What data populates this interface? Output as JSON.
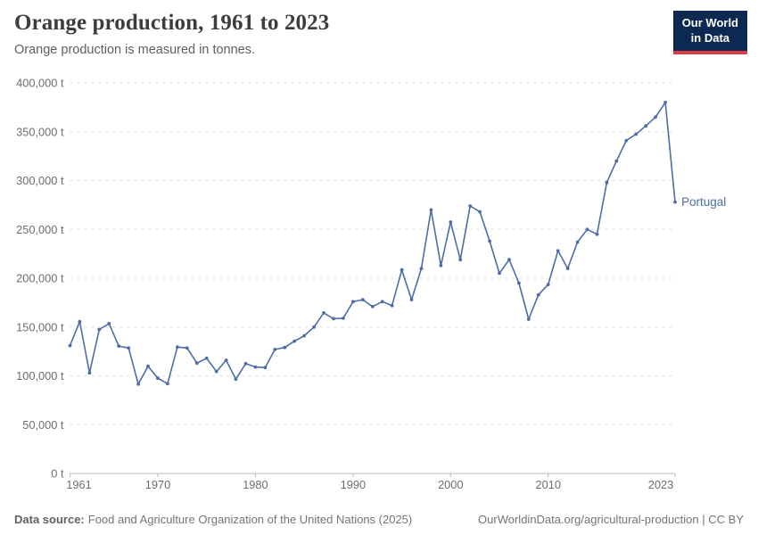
{
  "header": {
    "title": "Orange production, 1961 to 2023",
    "subtitle": "Orange production is measured in tonnes."
  },
  "logo": {
    "line1": "Our World",
    "line2": "in Data"
  },
  "series_label": "Portugal",
  "colors": {
    "line": "#4c6da5",
    "grid": "#dedede",
    "axis": "#b9b9b9",
    "tick_label": "#6e6e6e",
    "logo_bg": "#0c2a51",
    "logo_accent": "#dc3d43"
  },
  "chart_data": {
    "type": "line",
    "title": "Orange production, 1961 to 2023",
    "subtitle": "Orange production is measured in tonnes.",
    "unit": "t",
    "xlim": [
      1961,
      2023
    ],
    "ylim": [
      0,
      400000
    ],
    "yticks": [
      0,
      50000,
      100000,
      150000,
      200000,
      250000,
      300000,
      350000,
      400000
    ],
    "xticks": [
      1961,
      1970,
      1980,
      1990,
      2000,
      2010,
      2023
    ],
    "grid": "horizontal-dashed",
    "legend": "end-of-line-label",
    "x": [
      1961,
      1962,
      1963,
      1964,
      1965,
      1966,
      1967,
      1968,
      1969,
      1970,
      1971,
      1972,
      1973,
      1974,
      1975,
      1976,
      1977,
      1978,
      1979,
      1980,
      1981,
      1982,
      1983,
      1984,
      1985,
      1986,
      1987,
      1988,
      1989,
      1990,
      1991,
      1992,
      1993,
      1994,
      1995,
      1996,
      1997,
      1998,
      1999,
      2000,
      2001,
      2002,
      2003,
      2004,
      2005,
      2006,
      2007,
      2008,
      2009,
      2010,
      2011,
      2012,
      2013,
      2014,
      2015,
      2016,
      2017,
      2018,
      2019,
      2020,
      2021,
      2022,
      2023
    ],
    "series": [
      {
        "name": "Portugal",
        "color": "#4c6da5",
        "values": [
          131000,
          155500,
          103000,
          147500,
          153500,
          130500,
          128500,
          91500,
          110000,
          97500,
          92000,
          129500,
          128500,
          113000,
          118000,
          104500,
          116000,
          96500,
          112500,
          109000,
          108500,
          127000,
          129000,
          135500,
          141000,
          150000,
          164500,
          158500,
          159000,
          176000,
          178000,
          171000,
          176000,
          172000,
          208500,
          178000,
          210000,
          270000,
          213000,
          257500,
          219000,
          274000,
          268000,
          238000,
          205000,
          219000,
          195000,
          158000,
          183000,
          193500,
          228000,
          210000,
          237000,
          250000,
          245000,
          298000,
          320000,
          341000,
          347500,
          356000,
          365000,
          380000,
          278000
        ]
      }
    ]
  },
  "footer": {
    "source_label": "Data source:",
    "source_text": "Food and Agriculture Organization of the United Nations (2025)",
    "url_text": "OurWorldinData.org/agricultural-production",
    "divider": " | ",
    "license": "CC BY"
  }
}
